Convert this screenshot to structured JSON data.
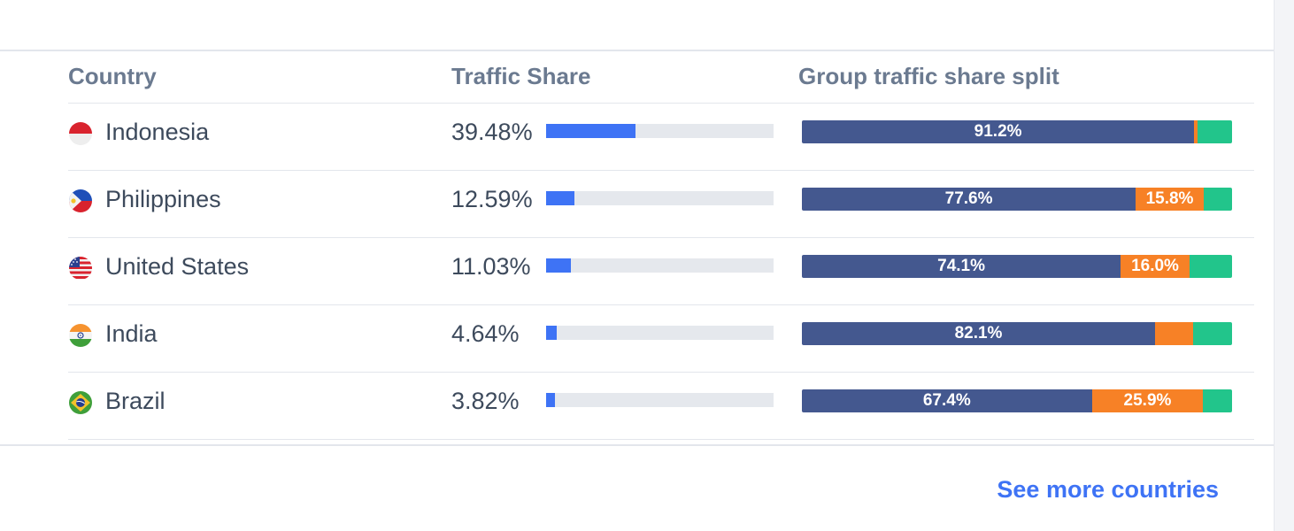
{
  "table": {
    "headers": {
      "country": "Country",
      "traffic_share": "Traffic Share",
      "group_split": "Group traffic share split"
    },
    "rows": [
      {
        "country": "Indonesia",
        "flag": "indonesia-flag",
        "traffic_share": "39.48%",
        "traffic_share_value": 39.48,
        "split": [
          {
            "value": 91.2,
            "label": "91.2%"
          },
          {
            "value": 0.8,
            "label": ""
          },
          {
            "value": 8.0,
            "label": ""
          }
        ]
      },
      {
        "country": "Philippines",
        "flag": "philippines-flag",
        "traffic_share": "12.59%",
        "traffic_share_value": 12.59,
        "split": [
          {
            "value": 77.6,
            "label": "77.6%"
          },
          {
            "value": 15.8,
            "label": "15.8%"
          },
          {
            "value": 6.6,
            "label": ""
          }
        ]
      },
      {
        "country": "United States",
        "flag": "united-states-flag",
        "traffic_share": "11.03%",
        "traffic_share_value": 11.03,
        "split": [
          {
            "value": 74.1,
            "label": "74.1%"
          },
          {
            "value": 16.0,
            "label": "16.0%"
          },
          {
            "value": 9.9,
            "label": ""
          }
        ]
      },
      {
        "country": "India",
        "flag": "india-flag",
        "traffic_share": "4.64%",
        "traffic_share_value": 4.64,
        "split": [
          {
            "value": 82.1,
            "label": "82.1%"
          },
          {
            "value": 8.9,
            "label": ""
          },
          {
            "value": 9.0,
            "label": ""
          }
        ]
      },
      {
        "country": "Brazil",
        "flag": "brazil-flag",
        "traffic_share": "3.82%",
        "traffic_share_value": 3.82,
        "split": [
          {
            "value": 67.4,
            "label": "67.4%"
          },
          {
            "value": 25.9,
            "label": "25.9%"
          },
          {
            "value": 6.7,
            "label": ""
          }
        ]
      }
    ]
  },
  "colors": {
    "share_fill": "#3e73f5",
    "share_track": "#e5e8ed",
    "split_segments": [
      "#44588f",
      "#f78126",
      "#22c58b"
    ]
  },
  "footer": {
    "see_more_label": "See more countries"
  }
}
